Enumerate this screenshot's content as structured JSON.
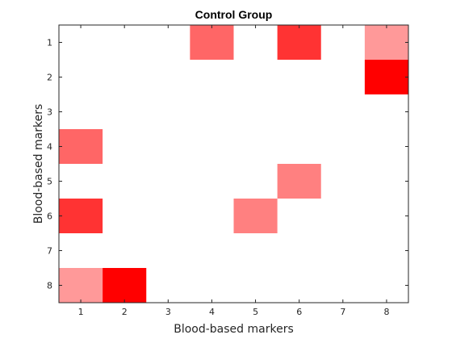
{
  "chart_data": {
    "type": "heatmap",
    "title": "Control Group",
    "xlabel": "Blood-based markers",
    "ylabel": "Blood-based markers",
    "x_ticks": [
      "1",
      "2",
      "3",
      "4",
      "5",
      "6",
      "7",
      "8"
    ],
    "y_ticks": [
      "1",
      "2",
      "3",
      "4",
      "5",
      "6",
      "7",
      "8"
    ],
    "xlim": [
      0.5,
      8.5
    ],
    "ylim": [
      0.5,
      8.5
    ],
    "y_direction": "reverse",
    "grid": false,
    "color_low": "#ffffff",
    "color_high": "#ff0000",
    "cells": [
      {
        "row": 1,
        "col": 4,
        "value": 0.6
      },
      {
        "row": 1,
        "col": 6,
        "value": 0.8
      },
      {
        "row": 1,
        "col": 8,
        "value": 0.4
      },
      {
        "row": 2,
        "col": 8,
        "value": 1.0
      },
      {
        "row": 4,
        "col": 1,
        "value": 0.6
      },
      {
        "row": 5,
        "col": 6,
        "value": 0.5
      },
      {
        "row": 6,
        "col": 1,
        "value": 0.8
      },
      {
        "row": 6,
        "col": 5,
        "value": 0.5
      },
      {
        "row": 8,
        "col": 1,
        "value": 0.4
      },
      {
        "row": 8,
        "col": 2,
        "value": 1.0
      }
    ]
  }
}
